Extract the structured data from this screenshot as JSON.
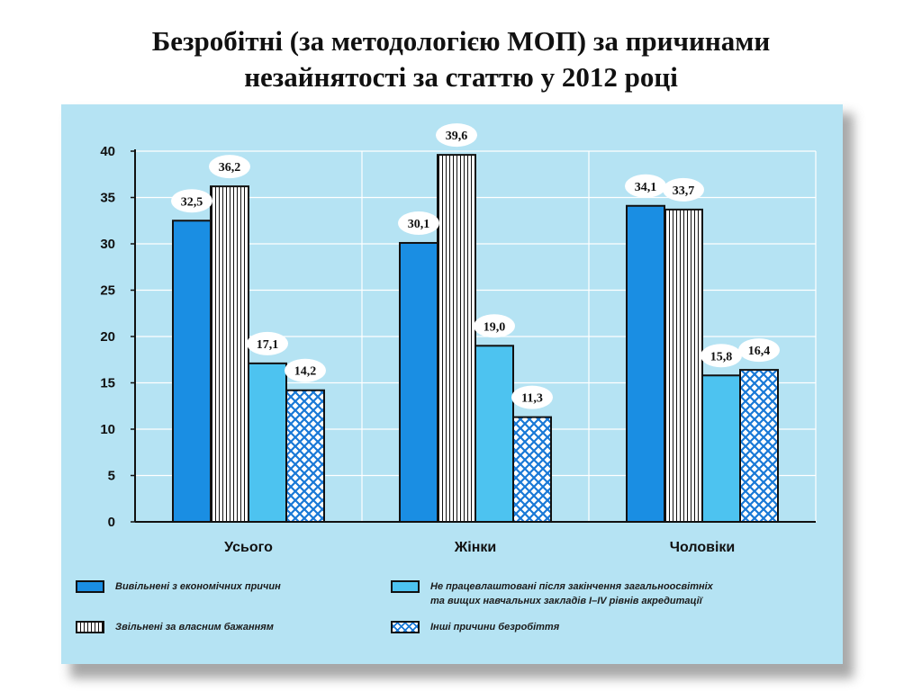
{
  "title": {
    "line1": "Безробітні (за методологією МОП) за причинами",
    "line2": "незайнятості за статтю у 2012 році"
  },
  "colors": {
    "panel_background": "#b5e3f3",
    "econ": "#1a8ee3",
    "graduates": "#4dc3f0",
    "other_pattern": "#1878d6",
    "gridline": "#ffffff",
    "axis": "#111111"
  },
  "chart_data": {
    "type": "bar",
    "categories": [
      "Усього",
      "Жінки",
      "Чоловіки"
    ],
    "series": [
      {
        "name": "Вивільнені з економічних причин",
        "pattern": "solid-blue",
        "values": [
          32.5,
          30.1,
          34.1
        ],
        "labels": [
          "32,5",
          "30,1",
          "34,1"
        ]
      },
      {
        "name": "Звільнені за власним бажанням",
        "pattern": "vertical-stripes",
        "values": [
          36.2,
          39.6,
          33.7
        ],
        "labels": [
          "36,2",
          "39,6",
          "33,7"
        ]
      },
      {
        "name": "Не працевлаштовані після закінчення загальноосвітніх та вищих навчальних закладів І–IV рівнів акредитації",
        "pattern": "solid-light-blue",
        "values": [
          17.1,
          19.0,
          15.8
        ],
        "labels": [
          "17,1",
          "19,0",
          "15,8"
        ]
      },
      {
        "name": "Інші причини безробіття",
        "pattern": "crosshatch",
        "values": [
          14.2,
          11.3,
          16.4
        ],
        "labels": [
          "14,2",
          "11,3",
          "16,4"
        ]
      }
    ],
    "yticks": [
      "0",
      "5",
      "10",
      "15",
      "20",
      "25",
      "30",
      "35",
      "40"
    ],
    "ylim": [
      0,
      40
    ],
    "grid": true,
    "legend_position": "bottom"
  },
  "legend": {
    "econ": "Вивільнені з економічних причин",
    "own": "Звільнені за власним бажанням",
    "grad_line1": "Не працевлаштовані після закінчення загальноосвітніх",
    "grad_line2": "та вищих навчальних закладів І–IV рівнів акредитації",
    "other": "Інші причини безробіття"
  }
}
